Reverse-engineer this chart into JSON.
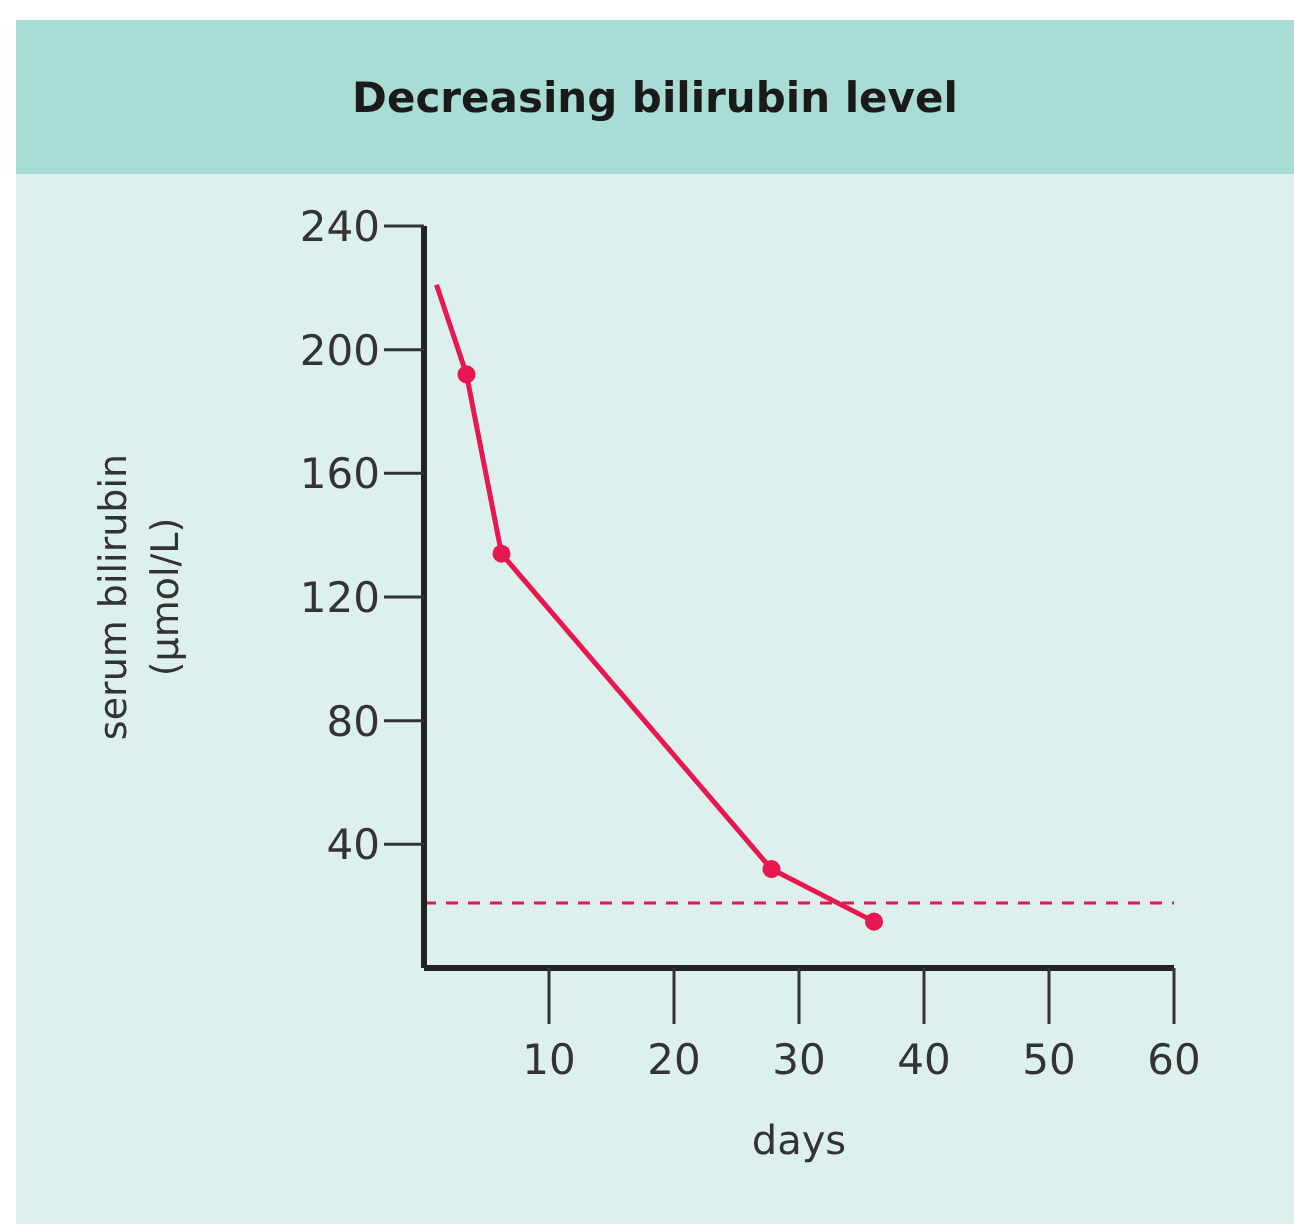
{
  "chart_data": {
    "type": "line",
    "title": "Decreasing bilirubin level",
    "xlabel": "days",
    "ylabel": "serum bilirubin\n(µmol/L)",
    "series": [
      {
        "color": "#e8174f",
        "x": [
          1,
          3.4,
          6.2,
          27.8,
          36
        ],
        "values": [
          221,
          192,
          134,
          32,
          15
        ],
        "marker": "none"
      },
      {
        "type": "scatter",
        "color": "#e8174f",
        "x": [
          3.4,
          6.2,
          27.8,
          36
        ],
        "values": [
          192,
          134,
          32,
          15
        ],
        "marker": "circle"
      }
    ],
    "xlim": [
      0,
      60
    ],
    "xticks": [
      10,
      20,
      30,
      40,
      50,
      60
    ],
    "ylim": [
      0,
      240
    ],
    "yticks": [
      40,
      80,
      120,
      160,
      200,
      240
    ],
    "ref_lines": [
      {
        "axis": "y",
        "value": 21,
        "color": "#e8174f",
        "line_style": "dashed"
      }
    ],
    "grid": false,
    "legend": false
  }
}
